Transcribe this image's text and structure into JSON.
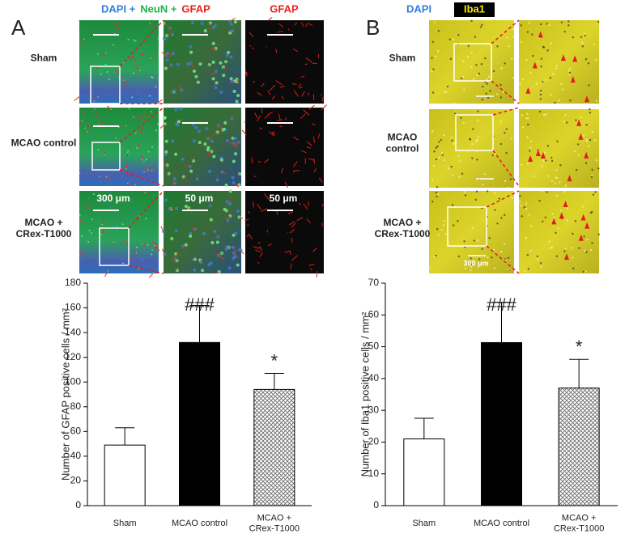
{
  "figure": {
    "panels": [
      {
        "letter": "A",
        "stains": [
          {
            "text": "DAPI +",
            "color": "#2f7de1"
          },
          {
            "text": "NeuN +",
            "color": "#1fb24a"
          },
          {
            "text": "GFAP",
            "color": "#e8221c"
          }
        ],
        "single_stain": {
          "text": "GFAP",
          "color": "#e8221c"
        },
        "rows": [
          "Sham",
          "MCAO control",
          "MCAO +\nCRex-T1000"
        ],
        "scale_labels": [
          "300 μm",
          "50 μm",
          "50 μm"
        ]
      },
      {
        "letter": "B",
        "stains": [
          {
            "text": "DAPI",
            "color": "#2f7de1"
          },
          {
            "text": "Iba1",
            "color": "#f4e600"
          }
        ],
        "rows": [
          "Sham",
          "MCAO\ncontrol",
          "MCAO +\nCRex-T1000"
        ],
        "scale_labels": [
          "300 μm"
        ]
      }
    ]
  },
  "chart_data": [
    {
      "type": "bar",
      "y_label": "Number of GFAP positive cells / mm²",
      "categories": [
        "Sham",
        "MCAO control",
        "MCAO +\nCRex-T1000"
      ],
      "values": [
        49,
        132,
        94
      ],
      "errors": [
        14,
        30,
        13
      ],
      "colors": [
        "#ffffff",
        "#000000",
        "#ffffff"
      ],
      "patterns": [
        "solid",
        "solid",
        "crosshatch"
      ],
      "ylim": [
        0,
        180
      ],
      "yticks": [
        0,
        20,
        40,
        60,
        80,
        100,
        120,
        140,
        160,
        180
      ],
      "annotations": [
        {
          "text": "###",
          "x": "MCAO control"
        },
        {
          "text": "*",
          "x": "MCAO +\nCRex-T1000"
        }
      ]
    },
    {
      "type": "bar",
      "y_label": "Number of Iba1 positive cells / mm²",
      "categories": [
        "Sham",
        "MCAO control",
        "MCAO +\nCRex-T1000"
      ],
      "values": [
        21,
        51.3,
        37
      ],
      "errors": [
        6.5,
        12.7,
        9
      ],
      "colors": [
        "#ffffff",
        "#000000",
        "#ffffff"
      ],
      "patterns": [
        "solid",
        "solid",
        "crosshatch"
      ],
      "ylim": [
        0,
        70
      ],
      "yticks": [
        0,
        10,
        20,
        30,
        40,
        50,
        60,
        70
      ],
      "annotations": [
        {
          "text": "###",
          "x": "MCAO control"
        },
        {
          "text": "*",
          "x": "MCAO +\nCRex-T1000"
        }
      ]
    }
  ]
}
